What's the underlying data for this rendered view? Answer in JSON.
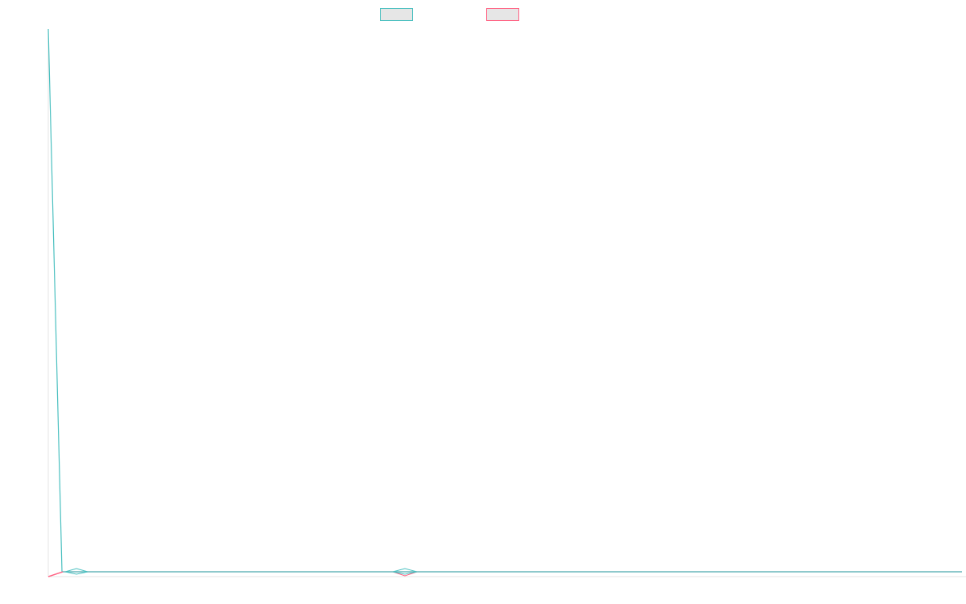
{
  "chart_data": {
    "type": "line",
    "title": "",
    "xlabel": "",
    "ylabel": "",
    "x": [
      0,
      1,
      2,
      3,
      4,
      5,
      6,
      7,
      8,
      9,
      10,
      11,
      12,
      13,
      14,
      15,
      16,
      17,
      18,
      19,
      20,
      21,
      22,
      23,
      24,
      25,
      26,
      27,
      28,
      29,
      30,
      31,
      32,
      33,
      34,
      35,
      36,
      37,
      38,
      39,
      40,
      41,
      42,
      43,
      44,
      45,
      46,
      47,
      48,
      49,
      50,
      51,
      52,
      53,
      54,
      55,
      56,
      57,
      58,
      59,
      60,
      61,
      62,
      63,
      64,
      65,
      66
    ],
    "xlim": [
      0,
      66
    ],
    "ylim": [
      -1,
      100
    ],
    "grid": false,
    "legend": "top-center",
    "series": [
      {
        "color": "#4bc0c0",
        "values": [
          100,
          0,
          0,
          0,
          0,
          0,
          0,
          0,
          0,
          0,
          0,
          0,
          0,
          0,
          0,
          0,
          0,
          0,
          0,
          0,
          0,
          0,
          0,
          0,
          0,
          0,
          0,
          0,
          0,
          0,
          0,
          0,
          0,
          0,
          0,
          0,
          0,
          0,
          0,
          0,
          0,
          0,
          0,
          0,
          0,
          0,
          0,
          0,
          0,
          0,
          0,
          0,
          0,
          0,
          0,
          0,
          0,
          0,
          0,
          0,
          0,
          0,
          0,
          0,
          0,
          0,
          0
        ],
        "markers": [
          {
            "x": 2,
            "shape": "diamond"
          },
          {
            "x": 26,
            "shape": "diamond"
          }
        ]
      },
      {
        "color": "#ff6384",
        "values": [
          -1,
          0,
          0,
          0,
          0,
          0,
          0,
          0,
          0,
          0,
          0,
          0,
          0,
          0,
          0,
          0,
          0,
          0,
          0,
          0,
          0,
          0,
          0,
          0,
          0,
          0,
          0,
          0,
          0,
          0,
          0,
          0,
          0,
          0,
          0,
          0,
          0,
          0,
          0,
          0,
          0,
          0,
          0,
          0,
          0,
          0,
          0,
          0,
          0,
          0,
          0,
          0,
          0,
          0,
          0,
          0,
          0,
          0,
          0,
          0,
          0,
          0,
          0,
          0,
          0,
          0,
          0
        ],
        "markers": [
          {
            "x": 26,
            "shape": "diamond"
          }
        ]
      }
    ]
  }
}
